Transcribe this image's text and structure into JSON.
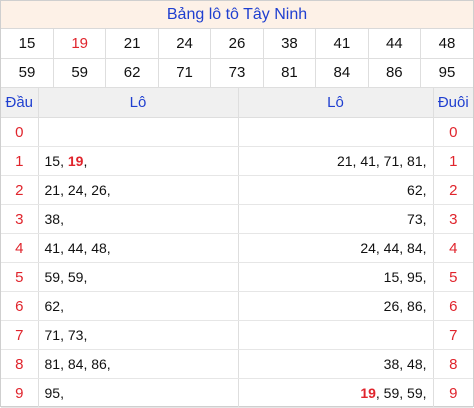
{
  "title": "Bảng lô tô Tây Ninh",
  "numbers_row1": [
    "15",
    "19",
    "21",
    "24",
    "26",
    "38",
    "41",
    "44",
    "48"
  ],
  "numbers_row2": [
    "59",
    "59",
    "62",
    "71",
    "73",
    "81",
    "84",
    "86",
    "95"
  ],
  "header": {
    "dau": "Đầu",
    "lo_left": "Lô",
    "lo_right": "Lô",
    "duoi": "Đuôi"
  },
  "rows": [
    {
      "dau": "0",
      "left": [],
      "right": [],
      "duoi": "0"
    },
    {
      "dau": "1",
      "left": [
        {
          "t": "15"
        },
        {
          "t": "19",
          "hl": true
        }
      ],
      "right": [
        {
          "t": "21"
        },
        {
          "t": "41"
        },
        {
          "t": "71"
        },
        {
          "t": "81"
        }
      ],
      "duoi": "1"
    },
    {
      "dau": "2",
      "left": [
        {
          "t": "21"
        },
        {
          "t": "24"
        },
        {
          "t": "26"
        }
      ],
      "right": [
        {
          "t": "62"
        }
      ],
      "duoi": "2"
    },
    {
      "dau": "3",
      "left": [
        {
          "t": "38"
        }
      ],
      "right": [
        {
          "t": "73"
        }
      ],
      "duoi": "3"
    },
    {
      "dau": "4",
      "left": [
        {
          "t": "41"
        },
        {
          "t": "44"
        },
        {
          "t": "48"
        }
      ],
      "right": [
        {
          "t": "24"
        },
        {
          "t": "44"
        },
        {
          "t": "84"
        }
      ],
      "duoi": "4"
    },
    {
      "dau": "5",
      "left": [
        {
          "t": "59"
        },
        {
          "t": "59"
        }
      ],
      "right": [
        {
          "t": "15"
        },
        {
          "t": "95"
        }
      ],
      "duoi": "5"
    },
    {
      "dau": "6",
      "left": [
        {
          "t": "62"
        }
      ],
      "right": [
        {
          "t": "26"
        },
        {
          "t": "86"
        }
      ],
      "duoi": "6"
    },
    {
      "dau": "7",
      "left": [
        {
          "t": "71"
        },
        {
          "t": "73"
        }
      ],
      "right": [],
      "duoi": "7"
    },
    {
      "dau": "8",
      "left": [
        {
          "t": "81"
        },
        {
          "t": "84"
        },
        {
          "t": "86"
        }
      ],
      "right": [
        {
          "t": "38"
        },
        {
          "t": "48"
        }
      ],
      "duoi": "8"
    },
    {
      "dau": "9",
      "left": [
        {
          "t": "95"
        }
      ],
      "right": [
        {
          "t": "19",
          "hl": true
        },
        {
          "t": "59"
        },
        {
          "t": "59"
        }
      ],
      "duoi": "9"
    }
  ],
  "colors": {
    "title": "#1f3fd0",
    "highlight": "#e0242c",
    "title_bg": "#fdf1e7"
  }
}
